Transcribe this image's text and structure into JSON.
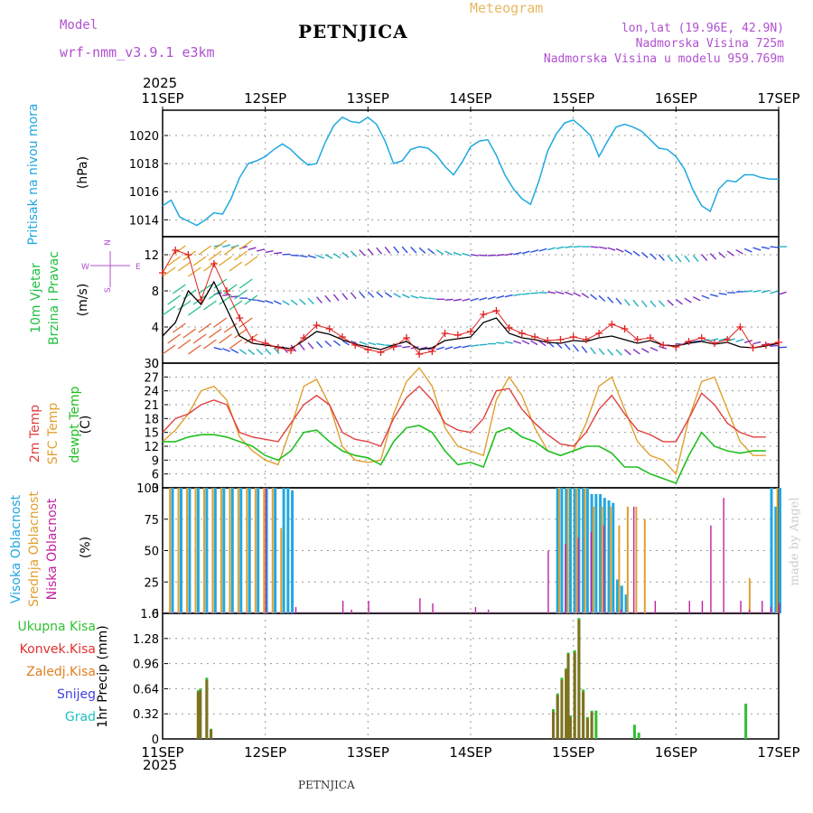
{
  "header": {
    "model_label": "Model",
    "model_name": "wrf-nmm_v3.9.1 e3km",
    "station": "PETNJICA",
    "meteogram": "Meteogram",
    "lonlat": "lon,lat (19.96E, 42.9N)",
    "altitude": "Nadmorska Visina 725m",
    "altitude_model": "Nadmorska Visina u modelu 959.769m",
    "footer_station": "PETNJICA",
    "credit": "made by Angel"
  },
  "time_axis": {
    "year": "2025",
    "ticks": [
      "11SEP",
      "12SEP",
      "13SEP",
      "14SEP",
      "15SEP",
      "16SEP",
      "17SEP"
    ]
  },
  "colors": {
    "pressure": "#1ea8e0",
    "wind_mean": "#000000",
    "gust": "#e02020",
    "t2m": "#e04040",
    "tsfc": "#e0a030",
    "dewpt": "#20c020",
    "cloud_high": "#20a8e0",
    "cloud_mid": "#e0a030",
    "cloud_low": "#c020a0",
    "precip_total": "#30c030",
    "precip_conv": "#e03030",
    "precip_frozen": "#e08020",
    "snow": "#4040e0",
    "hail": "#20c0c0"
  },
  "chart_data": [
    {
      "id": "pressure",
      "type": "line",
      "ylabel": "Pritisak na nivou mora",
      "unit": "(hPa)",
      "ylim": [
        1012.8,
        1021.8
      ],
      "yticks": [
        1014,
        1016,
        1018,
        1020
      ],
      "x": [
        0,
        2,
        4,
        6,
        8,
        10,
        12,
        14,
        16,
        18,
        20,
        22,
        24,
        26,
        28,
        30,
        32,
        34,
        36,
        38,
        40,
        42,
        44,
        46,
        48,
        50,
        52,
        54,
        56,
        58,
        60,
        62,
        64,
        66,
        68,
        70,
        72,
        74,
        76,
        78,
        80,
        82,
        84,
        86,
        88,
        90,
        92,
        94,
        96,
        98,
        100,
        102,
        104,
        106,
        108,
        110,
        112,
        114,
        116,
        118,
        120,
        122,
        124,
        126,
        128,
        130,
        132,
        134,
        136,
        138,
        140,
        142,
        144
      ],
      "values": [
        1015.0,
        1015.4,
        1014.2,
        1013.9,
        1013.6,
        1014.0,
        1014.5,
        1014.4,
        1015.5,
        1017.0,
        1018.0,
        1018.2,
        1018.5,
        1019.0,
        1019.4,
        1019.0,
        1018.4,
        1017.9,
        1018.0,
        1019.5,
        1020.7,
        1021.3,
        1021.0,
        1020.9,
        1021.3,
        1020.8,
        1019.6,
        1018.0,
        1018.2,
        1019.0,
        1019.2,
        1019.1,
        1018.6,
        1017.8,
        1017.2,
        1018.1,
        1019.2,
        1019.6,
        1019.7,
        1018.6,
        1017.2,
        1016.2,
        1015.5,
        1015.1,
        1016.8,
        1018.9,
        1020.1,
        1020.9,
        1021.1,
        1020.6,
        1020.0,
        1018.5,
        1019.6,
        1020.6,
        1020.8,
        1020.6,
        1020.3,
        1019.7,
        1019.1,
        1019.0,
        1018.5,
        1017.6,
        1016.1,
        1015.0,
        1014.6,
        1016.2,
        1016.8,
        1016.7,
        1017.2,
        1017.2,
        1017.0,
        1016.9,
        1016.9
      ]
    },
    {
      "id": "wind",
      "type": "line",
      "ylabel": "10m Vjetar",
      "ylabel2": "Brzina i Pravac",
      "unit": "(m/s)",
      "compass": "N, S, W, E",
      "ylim": [
        0,
        14
      ],
      "yticks": [
        0,
        4,
        8,
        12
      ],
      "x": [
        0,
        3,
        6,
        9,
        12,
        15,
        18,
        21,
        24,
        27,
        30,
        33,
        36,
        39,
        42,
        45,
        48,
        51,
        54,
        57,
        60,
        63,
        66,
        69,
        72,
        75,
        78,
        81,
        84,
        87,
        90,
        93,
        96,
        99,
        102,
        105,
        108,
        111,
        114,
        117,
        120,
        123,
        126,
        129,
        132,
        135,
        138,
        141,
        144
      ],
      "mean": [
        3.0,
        4.5,
        8.0,
        6.5,
        9.0,
        6.0,
        3.0,
        2.2,
        2.0,
        1.8,
        1.6,
        2.5,
        3.5,
        3.2,
        2.6,
        2.1,
        1.8,
        1.5,
        2.0,
        2.4,
        1.5,
        1.7,
        2.5,
        2.7,
        2.9,
        4.5,
        5.0,
        3.3,
        2.8,
        2.6,
        2.3,
        2.2,
        2.5,
        2.4,
        2.8,
        3.0,
        2.6,
        2.2,
        2.5,
        2.0,
        1.9,
        2.2,
        2.4,
        2.1,
        2.3,
        1.8,
        1.7,
        1.9,
        2.2
      ],
      "gust": [
        10.0,
        12.5,
        12.0,
        7.0,
        11.0,
        8.0,
        5.0,
        2.6,
        2.2,
        1.7,
        1.4,
        2.8,
        4.2,
        3.8,
        2.9,
        2.0,
        1.5,
        1.2,
        1.8,
        2.8,
        1.0,
        1.3,
        3.3,
        3.1,
        3.5,
        5.4,
        5.8,
        3.9,
        3.3,
        2.9,
        2.5,
        2.6,
        2.9,
        2.6,
        3.3,
        4.3,
        3.8,
        2.6,
        2.8,
        2.0,
        1.8,
        2.4,
        2.8,
        2.2,
        2.6,
        4.0,
        1.7,
        2.0,
        2.3
      ]
    },
    {
      "id": "temperature",
      "type": "line",
      "labels": [
        "2m Temp",
        "SFC Temp",
        "dewpt Temp"
      ],
      "unit": "(C)",
      "ylim": [
        3,
        30
      ],
      "yticks": [
        3,
        6,
        9,
        12,
        15,
        18,
        21,
        24,
        27,
        30
      ],
      "x": [
        0,
        3,
        6,
        9,
        12,
        15,
        18,
        21,
        24,
        27,
        30,
        33,
        36,
        39,
        42,
        45,
        48,
        51,
        54,
        57,
        60,
        63,
        66,
        69,
        72,
        75,
        78,
        81,
        84,
        87,
        90,
        93,
        96,
        99,
        102,
        105,
        108,
        111,
        114,
        117,
        120,
        123,
        126,
        129,
        132,
        135,
        138,
        141,
        144
      ],
      "t2m": [
        15,
        18,
        19,
        21,
        22,
        21,
        15,
        14,
        13.5,
        13,
        17,
        21,
        23,
        21,
        15,
        13.5,
        13,
        12,
        18,
        22.5,
        25,
        22,
        17,
        15.5,
        15,
        18,
        24,
        24.5,
        20,
        17,
        14.5,
        12.5,
        12,
        15,
        20,
        23,
        19,
        15.5,
        14.5,
        13,
        13,
        18,
        23.5,
        21,
        17,
        15,
        14,
        14
      ],
      "tsfc": [
        13,
        15.5,
        19,
        24,
        25,
        22,
        14,
        11,
        9,
        8,
        16,
        25,
        26.5,
        21,
        12,
        9,
        8.5,
        9,
        19,
        26,
        29,
        25,
        16,
        12,
        11,
        10,
        22,
        27,
        23,
        16,
        11,
        10,
        11,
        17,
        25,
        27,
        20,
        13,
        10,
        9,
        6,
        18,
        26,
        27,
        20,
        13,
        10,
        10
      ],
      "dewpt": [
        13,
        13,
        14,
        14.5,
        14.5,
        14,
        13,
        12,
        10,
        9,
        11,
        15,
        15.5,
        13,
        11,
        10,
        9.5,
        8,
        13,
        16,
        16.5,
        15,
        11,
        8,
        8.5,
        7.5,
        15,
        16,
        14,
        13,
        11,
        10,
        11,
        12,
        12,
        10.5,
        7.5,
        7.5,
        6,
        5,
        4,
        10,
        15,
        12,
        11,
        10.5,
        11,
        11
      ]
    },
    {
      "id": "clouds",
      "type": "bar",
      "labels": [
        "Visoka Oblacnost",
        "Srednja Oblacnost",
        "Niska Oblacnost"
      ],
      "unit": "(%)",
      "ylim": [
        0,
        100
      ],
      "yticks": [
        0,
        25,
        50,
        75,
        100
      ],
      "series": [
        {
          "name": "high",
          "x": [
            2,
            4,
            6,
            8,
            10,
            12,
            14,
            16,
            18,
            20,
            22,
            24,
            26,
            28,
            29,
            30,
            92,
            93,
            94,
            95,
            96,
            97,
            98,
            99,
            100,
            101,
            102,
            103,
            104,
            105,
            106,
            107,
            108,
            142,
            143,
            144
          ],
          "values": [
            100,
            100,
            100,
            100,
            100,
            100,
            100,
            100,
            100,
            100,
            100,
            100,
            100,
            100,
            100,
            98,
            100,
            100,
            100,
            100,
            100,
            100,
            100,
            100,
            95,
            95,
            95,
            92,
            90,
            88,
            27,
            22,
            15,
            100,
            85,
            100
          ]
        },
        {
          "name": "mid",
          "x": [
            1.5,
            3.5,
            5.5,
            7.5,
            9.5,
            11.5,
            13.5,
            15.5,
            17.5,
            19.5,
            21.5,
            23.5,
            25.5,
            27.5,
            92.5,
            94.5,
            96.5,
            98.5,
            100.5,
            102.5,
            104.5,
            106.5,
            108.5,
            110.5,
            112.5,
            137,
            143.5
          ],
          "values": [
            100,
            100,
            100,
            100,
            100,
            100,
            100,
            100,
            100,
            100,
            100,
            100,
            100,
            68,
            100,
            100,
            100,
            100,
            85,
            85,
            85,
            70,
            85,
            85,
            75,
            28,
            100
          ]
        },
        {
          "name": "low",
          "x": [
            24,
            31,
            42,
            44,
            48,
            60,
            63,
            73,
            76,
            90,
            94,
            97,
            100,
            103,
            107,
            110,
            115,
            123,
            126,
            128,
            131,
            135,
            137,
            140,
            142,
            144
          ],
          "values": [
            100,
            5,
            10,
            3,
            10,
            12,
            8,
            5,
            3,
            50,
            55,
            60,
            65,
            70,
            3,
            85,
            10,
            10,
            10,
            70,
            92,
            10,
            3,
            10,
            5,
            8
          ]
        }
      ]
    },
    {
      "id": "precip",
      "type": "bar",
      "labels": [
        "Ukupna Kisa",
        "Konvek.Kisa",
        "Zaledj.Kisa",
        "Snijeg",
        "Grad"
      ],
      "unit": "1hr Precip (mm)",
      "ylim": [
        0,
        1.6
      ],
      "yticks": [
        0,
        0.32,
        0.64,
        0.96,
        1.28,
        1.6
      ],
      "series": [
        {
          "name": "total",
          "x": [
            8,
            8.5,
            10,
            11,
            91,
            92,
            93,
            94,
            94.5,
            95,
            96,
            97,
            98,
            99,
            100,
            101,
            110,
            111,
            136
          ],
          "values": [
            0.62,
            0.64,
            0.78,
            0.13,
            0.38,
            0.58,
            0.78,
            0.9,
            1.1,
            0.3,
            1.13,
            1.54,
            0.63,
            0.28,
            0.36,
            0.36,
            0.18,
            0.08,
            0.45
          ]
        },
        {
          "name": "convective",
          "x": [
            8,
            8.5,
            10,
            11,
            91,
            92,
            93,
            94,
            94.5,
            95,
            96,
            97,
            98,
            99,
            100
          ],
          "values": [
            0.6,
            0.62,
            0.75,
            0.12,
            0.35,
            0.56,
            0.75,
            0.88,
            1.08,
            0.28,
            1.1,
            1.52,
            0.6,
            0.26,
            0.34
          ]
        }
      ]
    }
  ]
}
